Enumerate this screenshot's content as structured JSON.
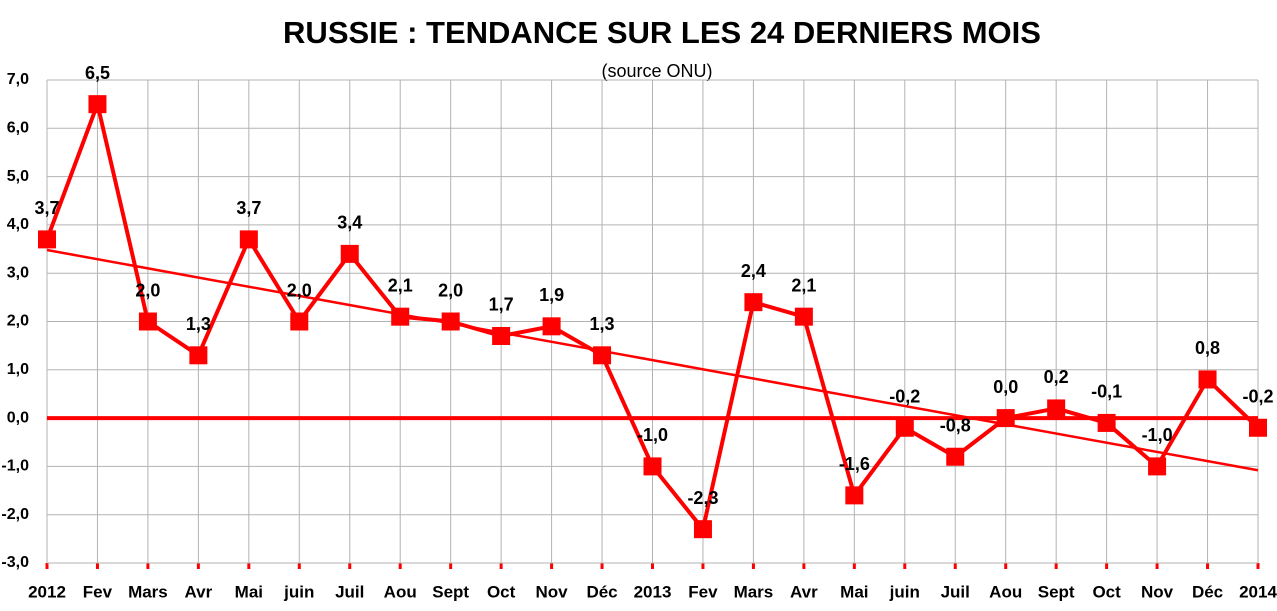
{
  "chart_data": {
    "type": "line",
    "title": "RUSSIE : TENDANCE SUR LES 24 DERNIERS MOIS",
    "subtitle": "(source ONU)",
    "categories": [
      "2012",
      "Fev",
      "Mars",
      "Avr",
      "Mai",
      "juin",
      "Juil",
      "Aou",
      "Sept",
      "Oct",
      "Nov",
      "Déc",
      "2013",
      "Fev",
      "Mars",
      "Avr",
      "Mai",
      "juin",
      "Juil",
      "Aou",
      "Sept",
      "Oct",
      "Nov",
      "Déc",
      "2014"
    ],
    "series": [
      {
        "name": "Russie",
        "color": "#ff0000",
        "values": [
          3.7,
          6.5,
          2.0,
          1.3,
          3.7,
          2.0,
          3.4,
          2.1,
          2.0,
          1.7,
          1.9,
          1.3,
          -1.0,
          -2.3,
          2.4,
          2.1,
          -1.6,
          -0.2,
          -0.8,
          0.0,
          0.2,
          -0.1,
          -1.0,
          0.8,
          -0.2
        ],
        "value_labels": [
          "3,7",
          "6,5",
          "2,0",
          "1,3",
          "3,7",
          "2,0",
          "3,4",
          "2,1",
          "2,0",
          "1,7",
          "1,9",
          "1,3",
          "-1,0",
          "-2,3",
          "2,4",
          "2,1",
          "-1,6",
          "-0,2",
          "-0,8",
          "0,0",
          "0,2",
          "-0,1",
          "-1,0",
          "0,8",
          "-0,2"
        ]
      }
    ],
    "trendline": {
      "start": 3.48,
      "end": -1.08,
      "color": "#ff0000"
    },
    "ylim": [
      -3,
      7
    ],
    "yticks": [
      {
        "value": 7,
        "label": "7,0"
      },
      {
        "value": 6,
        "label": "6,0"
      },
      {
        "value": 5,
        "label": "5,0"
      },
      {
        "value": 4,
        "label": "4,0"
      },
      {
        "value": 3,
        "label": "3,0"
      },
      {
        "value": 2,
        "label": "2,0"
      },
      {
        "value": 1,
        "label": "1,0"
      },
      {
        "value": 0,
        "label": "0,0"
      },
      {
        "value": -1,
        "label": "-1,0"
      },
      {
        "value": -2,
        "label": "-2,0"
      },
      {
        "value": -3,
        "label": "-3,0"
      }
    ],
    "grid": true
  }
}
